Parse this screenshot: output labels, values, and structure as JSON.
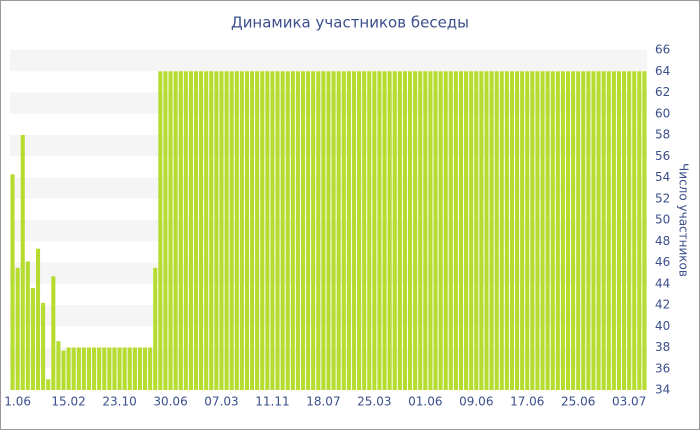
{
  "chart_data": {
    "type": "bar",
    "title": "Динамика участников беседы",
    "y_axis_label": "Число участников",
    "color": "#b5dc2e",
    "grid": true,
    "ylim": [
      34,
      66
    ],
    "yticks": [
      34,
      36,
      38,
      40,
      42,
      44,
      46,
      48,
      50,
      52,
      54,
      56,
      58,
      60,
      62,
      64,
      66
    ],
    "categories": [
      null,
      "1.06",
      null,
      null,
      null,
      null,
      null,
      null,
      null,
      null,
      null,
      "15.02",
      null,
      null,
      null,
      null,
      null,
      null,
      null,
      null,
      null,
      "23.10",
      null,
      null,
      null,
      null,
      null,
      null,
      null,
      null,
      null,
      "30.06",
      null,
      null,
      null,
      null,
      null,
      null,
      null,
      null,
      null,
      "07.03",
      null,
      null,
      null,
      null,
      null,
      null,
      null,
      null,
      null,
      "11.11",
      null,
      null,
      null,
      null,
      null,
      null,
      null,
      null,
      null,
      "18.07",
      null,
      null,
      null,
      null,
      null,
      null,
      null,
      null,
      null,
      "25.03",
      null,
      null,
      null,
      null,
      null,
      null,
      null,
      null,
      null,
      "01.06",
      null,
      null,
      null,
      null,
      null,
      null,
      null,
      null,
      null,
      "09.06",
      null,
      null,
      null,
      null,
      null,
      null,
      null,
      null,
      null,
      "17.06",
      null,
      null,
      null,
      null,
      null,
      null,
      null,
      null,
      null,
      "25.06",
      null,
      null,
      null,
      null,
      null,
      null,
      null,
      null,
      null,
      "03.07",
      null,
      null,
      null
    ],
    "values": [
      54.3,
      45.5,
      58,
      46.1,
      43.6,
      47.3,
      42.2,
      35,
      44.7,
      38.6,
      37.7,
      38,
      38,
      38,
      38,
      38,
      38,
      38,
      38,
      38,
      38,
      38,
      38,
      38,
      38,
      38,
      38,
      38,
      45.5,
      64,
      64,
      64,
      64,
      64,
      64,
      64,
      64,
      64,
      64,
      64,
      64,
      64,
      64,
      64,
      64,
      64,
      64,
      64,
      64,
      64,
      64,
      64,
      64,
      64,
      64,
      64,
      64,
      64,
      64,
      64,
      64,
      64,
      64,
      64,
      64,
      64,
      64,
      64,
      64,
      64,
      64,
      64,
      64,
      64,
      64,
      64,
      64,
      64,
      64,
      64,
      64,
      64,
      64,
      64,
      64,
      64,
      64,
      64,
      64,
      64,
      64,
      64,
      64,
      64,
      64,
      64,
      64,
      64,
      64,
      64,
      64,
      64,
      64,
      64,
      64,
      64,
      64,
      64,
      64,
      64,
      64,
      64,
      64,
      64,
      64,
      64,
      64,
      64,
      64,
      64,
      64,
      64,
      64,
      64,
      64
    ]
  }
}
